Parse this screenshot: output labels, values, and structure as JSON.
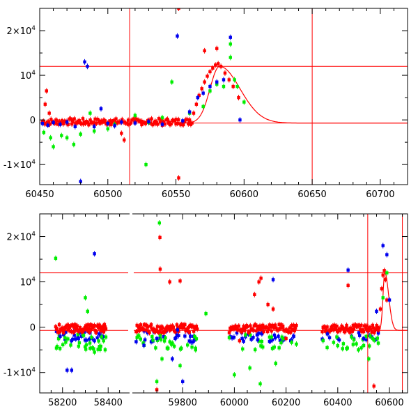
{
  "chart_data": [
    {
      "type": "scatter",
      "title": "",
      "xlabel": "",
      "ylabel": "",
      "xlim": [
        60450,
        60720
      ],
      "ylim": [
        -14500,
        25000
      ],
      "x_ticks": [
        {
          "value": 60450,
          "label": "60450"
        },
        {
          "value": 60500,
          "label": "60500"
        },
        {
          "value": 60550,
          "label": "60550"
        },
        {
          "value": 60600,
          "label": "60600"
        },
        {
          "value": 60650,
          "label": "60650"
        },
        {
          "value": 60700,
          "label": "60700"
        }
      ],
      "y_ticks": [
        {
          "value": -10000,
          "base": "-1×10",
          "exp": "4"
        },
        {
          "value": 0,
          "base": "0",
          "exp": ""
        },
        {
          "value": 10000,
          "base": "10",
          "exp": "4"
        },
        {
          "value": 20000,
          "base": "2×10",
          "exp": "4"
        }
      ],
      "grid": false,
      "reference_lines": {
        "horizontal": [
          12000,
          -700
        ],
        "vertical": [
          60516,
          60650
        ]
      },
      "model_curve": {
        "baseline": -700,
        "peak_x": 60582,
        "peak_y": 12000,
        "rise_width": 7,
        "decay_width": 15
      },
      "series": [
        {
          "color": "#ff0000",
          "points": [
            [
              60454,
              3500
            ],
            [
              60455,
              6500
            ],
            [
              60457,
              1500
            ],
            [
              60459,
              -500
            ],
            [
              60462,
              -800
            ],
            [
              60466,
              -500
            ],
            [
              60470,
              -300
            ],
            [
              60474,
              -200
            ],
            [
              60478,
              -600
            ],
            [
              60482,
              -900
            ],
            [
              60486,
              -1100
            ],
            [
              60490,
              -600
            ],
            [
              60494,
              -300
            ],
            [
              60498,
              -500
            ],
            [
              60502,
              -200
            ],
            [
              60506,
              -700
            ],
            [
              60510,
              -3000
            ],
            [
              60512,
              -4500
            ],
            [
              60515,
              -1000
            ],
            [
              60520,
              -600
            ],
            [
              60525,
              -300
            ],
            [
              60530,
              -500
            ],
            [
              60535,
              -800
            ],
            [
              60540,
              -1200
            ],
            [
              60545,
              -500
            ],
            [
              60550,
              -900
            ],
            [
              60555,
              -400
            ],
            [
              60560,
              0
            ],
            [
              60563,
              1500
            ],
            [
              60565,
              3500
            ],
            [
              60567,
              5500
            ],
            [
              60569,
              7000
            ],
            [
              60571,
              8500
            ],
            [
              60573,
              9800
            ],
            [
              60575,
              10800
            ],
            [
              60577,
              11600
            ],
            [
              60579,
              12300
            ],
            [
              60581,
              12600
            ],
            [
              60583,
              12000
            ],
            [
              60586,
              10500
            ],
            [
              60589,
              9000
            ],
            [
              60592,
              7500
            ],
            [
              60596,
              5000
            ],
            [
              60552,
              -13000
            ],
            [
              60571,
              15500
            ],
            [
              60580,
              16000
            ],
            [
              60552,
              25000
            ]
          ]
        },
        {
          "color": "#00ee00",
          "points": [
            [
              60453,
              -2800
            ],
            [
              60458,
              -4000
            ],
            [
              60460,
              -6000
            ],
            [
              60466,
              -3500
            ],
            [
              60470,
              -4000
            ],
            [
              60475,
              -5500
            ],
            [
              60480,
              -3200
            ],
            [
              60490,
              -2500
            ],
            [
              60500,
              -2000
            ],
            [
              60520,
              1000
            ],
            [
              60530,
              -600
            ],
            [
              60540,
              500
            ],
            [
              60547,
              8500
            ],
            [
              60560,
              1500
            ],
            [
              60570,
              3000
            ],
            [
              60575,
              6500
            ],
            [
              60580,
              8000
            ],
            [
              60585,
              7500
            ],
            [
              60590,
              14000
            ],
            [
              60593,
              9000
            ],
            [
              60595,
              7500
            ],
            [
              60600,
              4000
            ],
            [
              60590,
              17000
            ],
            [
              60528,
              -10000
            ],
            [
              60487,
              1500
            ],
            [
              60505,
              -1000
            ]
          ]
        },
        {
          "color": "#0000ee",
          "points": [
            [
              60452,
              -800
            ],
            [
              60456,
              -1200
            ],
            [
              60460,
              -600
            ],
            [
              60465,
              -1000
            ],
            [
              60470,
              -500
            ],
            [
              60476,
              -1500
            ],
            [
              60483,
              13000
            ],
            [
              60485,
              12000
            ],
            [
              60490,
              -1500
            ],
            [
              60495,
              2500
            ],
            [
              60500,
              -800
            ],
            [
              60505,
              -1300
            ],
            [
              60510,
              -500
            ],
            [
              60520,
              -700
            ],
            [
              60530,
              -400
            ],
            [
              60540,
              -1000
            ],
            [
              60551,
              18800
            ],
            [
              60555,
              -200
            ],
            [
              60560,
              1800
            ],
            [
              60566,
              5000
            ],
            [
              60570,
              6000
            ],
            [
              60575,
              7500
            ],
            [
              60580,
              8500
            ],
            [
              60585,
              9000
            ],
            [
              60590,
              18500
            ],
            [
              60597,
              0
            ],
            [
              60480,
              -13800
            ]
          ]
        }
      ]
    },
    {
      "type": "scatter",
      "title": "",
      "xlabel": "",
      "ylabel": "",
      "axis_break": {
        "at": 58500,
        "note": "left panel 58100-58500, right panel 59600-60670"
      },
      "xlim_left": [
        58100,
        58500
      ],
      "xlim_right": [
        59600,
        60670
      ],
      "ylim": [
        -14500,
        25000
      ],
      "x_ticks": [
        {
          "value": 58200,
          "label": "58200"
        },
        {
          "value": 58400,
          "label": "58400"
        },
        {
          "value": 59800,
          "label": "59800"
        },
        {
          "value": 60000,
          "label": "60000"
        },
        {
          "value": 60200,
          "label": "60200"
        },
        {
          "value": 60400,
          "label": "60400"
        },
        {
          "value": 60600,
          "label": "60600"
        }
      ],
      "y_ticks": [
        {
          "value": -10000,
          "base": "-1×10",
          "exp": "4"
        },
        {
          "value": 0,
          "base": "0",
          "exp": ""
        },
        {
          "value": 10000,
          "base": "10",
          "exp": "4"
        },
        {
          "value": 20000,
          "base": "2×10",
          "exp": "4"
        }
      ],
      "grid": false,
      "reference_lines": {
        "horizontal": [
          12000,
          -700
        ],
        "vertical": [
          60516,
          60650
        ]
      },
      "seasons": [
        {
          "start": 58170,
          "end": 58390
        },
        {
          "start": 59620,
          "end": 59860
        },
        {
          "start": 59980,
          "end": 60240
        },
        {
          "start": 60340,
          "end": 60560
        }
      ],
      "model_curve": {
        "baseline": -700,
        "peak_x": 60582,
        "peak_y": 12000,
        "rise_width": 7,
        "decay_width": 15
      },
      "series": [
        {
          "color": "#ff0000",
          "points": [
            [
              59712,
              19800
            ],
            [
              59713,
              12800
            ],
            [
              59720,
              -1200
            ],
            [
              59750,
              10000
            ],
            [
              59790,
              10200
            ],
            [
              60078,
              7200
            ],
            [
              60095,
              10000
            ],
            [
              60103,
              10800
            ],
            [
              60130,
              5000
            ],
            [
              60440,
              9200
            ],
            [
              60565,
              4000
            ],
            [
              60570,
              8500
            ],
            [
              60575,
              11500
            ],
            [
              60580,
              12500
            ],
            [
              60585,
              10500
            ],
            [
              60590,
              6000
            ],
            [
              60540,
              -13000
            ],
            [
              60150,
              4000
            ],
            [
              60200,
              -2500
            ],
            [
              60020,
              -3000
            ],
            [
              59700,
              -13800
            ]
          ]
        },
        {
          "color": "#00ee00",
          "points": [
            [
              58170,
              15200
            ],
            [
              58300,
              6500
            ],
            [
              58310,
              3500
            ],
            [
              58320,
              -3500
            ],
            [
              58340,
              -5500
            ],
            [
              58380,
              -3000
            ],
            [
              59700,
              -12000
            ],
            [
              59710,
              23000
            ],
            [
              59720,
              -7000
            ],
            [
              59760,
              -3500
            ],
            [
              59790,
              -8500
            ],
            [
              59850,
              -5000
            ],
            [
              60000,
              -10500
            ],
            [
              60060,
              -9000
            ],
            [
              60100,
              -12500
            ],
            [
              60160,
              -8000
            ],
            [
              60480,
              -5000
            ],
            [
              60520,
              -7000
            ],
            [
              60575,
              6500
            ],
            [
              60590,
              12000
            ],
            [
              59890,
              3000
            ]
          ]
        },
        {
          "color": "#0000ee",
          "points": [
            [
              58190,
              -2000
            ],
            [
              58220,
              -9500
            ],
            [
              58240,
              -9500
            ],
            [
              58270,
              -2500
            ],
            [
              58340,
              16200
            ],
            [
              58360,
              -1500
            ],
            [
              59650,
              -4000
            ],
            [
              59700,
              -2500
            ],
            [
              59760,
              -7000
            ],
            [
              59800,
              -12000
            ],
            [
              59830,
              -2000
            ],
            [
              60030,
              -2500
            ],
            [
              60090,
              -2800
            ],
            [
              60150,
              10500
            ],
            [
              60170,
              -2000
            ],
            [
              60230,
              -2000
            ],
            [
              60360,
              -1500
            ],
            [
              60440,
              12600
            ],
            [
              60500,
              -2500
            ],
            [
              60550,
              3500
            ],
            [
              60575,
              18000
            ],
            [
              60590,
              16000
            ],
            [
              60600,
              6000
            ],
            [
              59780,
              -600
            ]
          ]
        }
      ]
    }
  ]
}
